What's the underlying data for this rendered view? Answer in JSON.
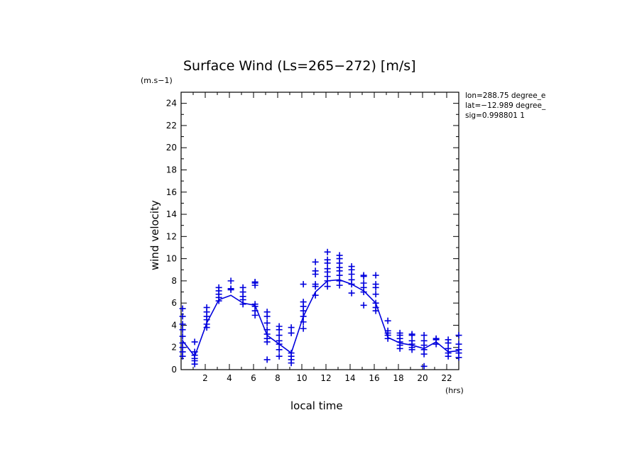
{
  "chart_data": {
    "type": "scatter",
    "title": "Surface Wind  (Ls=265−272) [m/s]",
    "ylabel": "wind velocity",
    "xlabel": "local time",
    "y_units": "(m.s−1)",
    "x_units": "(hrs)",
    "xlim": [
      0,
      23
    ],
    "ylim": [
      0,
      25
    ],
    "x_ticks": [
      "2",
      "4",
      "6",
      "8",
      "10",
      "12",
      "14",
      "16",
      "18",
      "20",
      "22"
    ],
    "x_tick_values": [
      2,
      4,
      6,
      8,
      10,
      12,
      14,
      16,
      18,
      20,
      22
    ],
    "y_ticks": [
      "0",
      "2",
      "4",
      "6",
      "8",
      "10",
      "12",
      "14",
      "16",
      "18",
      "20",
      "22",
      "24"
    ],
    "y_tick_values": [
      0,
      2,
      4,
      6,
      8,
      10,
      12,
      14,
      16,
      18,
      20,
      22,
      24
    ],
    "info_lines": [
      "lon=288.75 degree_e",
      "lat=−12.989 degree_",
      "sig=0.998801 1"
    ],
    "color": "#0000dd",
    "mean_line": {
      "name": "mean",
      "x": [
        0.125,
        1.125,
        2.125,
        3.125,
        4.125,
        5.125,
        6.125,
        7.125,
        8.125,
        9.125,
        10.125,
        11.125,
        12.125,
        13.125,
        14.125,
        15.125,
        16.125,
        17.125,
        18.125,
        19.125,
        20.125,
        21.125,
        22.125,
        23.0
      ],
      "y": [
        2.6,
        1.2,
        4.2,
        6.3,
        6.7,
        6.0,
        5.8,
        3.1,
        2.3,
        1.5,
        4.8,
        7.0,
        8.0,
        8.1,
        7.7,
        7.1,
        6.0,
        2.9,
        2.4,
        2.2,
        1.9,
        2.5,
        1.6,
        1.7
      ]
    },
    "samples": {
      "name": "samples",
      "x": [
        0.125,
        1.125,
        2.125,
        3.125,
        4.125,
        5.125,
        6.125,
        7.125,
        8.125,
        9.125,
        10.125,
        11.125,
        12.125,
        13.125,
        14.125,
        15.125,
        16.125,
        17.125,
        18.125,
        19.125,
        20.125,
        21.125,
        22.125,
        23.0
      ],
      "y": [
        [
          1.2,
          1.6,
          2.0,
          2.4,
          3.0,
          3.6,
          4.1,
          4.8,
          5.5
        ],
        [
          0.5,
          0.8,
          1.0,
          1.3,
          1.6,
          2.5
        ],
        [
          3.8,
          4.1,
          4.5,
          4.8,
          5.2,
          5.6
        ],
        [
          6.2,
          6.5,
          6.8,
          7.1,
          7.4
        ],
        [
          7.2,
          7.3,
          8.0
        ],
        [
          5.9,
          6.3,
          6.6,
          7.0,
          7.4
        ],
        [
          4.9,
          5.3,
          5.7,
          5.9,
          7.6,
          7.8,
          7.9
        ],
        [
          0.9,
          2.5,
          2.8,
          3.2,
          3.6,
          4.2,
          4.8,
          5.2
        ],
        [
          1.2,
          1.8,
          2.3,
          2.6,
          3.1,
          3.6,
          3.9
        ],
        [
          0.6,
          0.9,
          1.2,
          1.5,
          3.3,
          3.8
        ],
        [
          3.7,
          4.3,
          4.8,
          5.3,
          5.7,
          6.1,
          7.7
        ],
        [
          6.7,
          7.5,
          7.7,
          8.6,
          8.9,
          9.7
        ],
        [
          7.5,
          8.0,
          8.4,
          8.8,
          9.1,
          9.6,
          9.9,
          10.6
        ],
        [
          7.6,
          8.0,
          8.5,
          8.9,
          9.2,
          9.6,
          10.0,
          10.3
        ],
        [
          6.9,
          7.7,
          8.1,
          8.6,
          9.0,
          9.3
        ],
        [
          5.8,
          7.0,
          7.4,
          7.8,
          8.4,
          8.5
        ],
        [
          5.3,
          5.6,
          6.0,
          6.8,
          7.4,
          7.7,
          8.5
        ],
        [
          2.8,
          3.1,
          3.3,
          3.5,
          4.4
        ],
        [
          1.9,
          2.2,
          2.5,
          2.8,
          3.1,
          3.3
        ],
        [
          1.8,
          2.0,
          2.3,
          2.6,
          3.1,
          3.2
        ],
        [
          0.3,
          1.4,
          1.8,
          2.2,
          2.6,
          3.1
        ],
        [
          2.3,
          2.7,
          2.8
        ],
        [
          1.2,
          1.5,
          1.9,
          2.4,
          2.7
        ],
        [
          1.1,
          1.5,
          1.8,
          2.3,
          3.1
        ]
      ]
    }
  }
}
